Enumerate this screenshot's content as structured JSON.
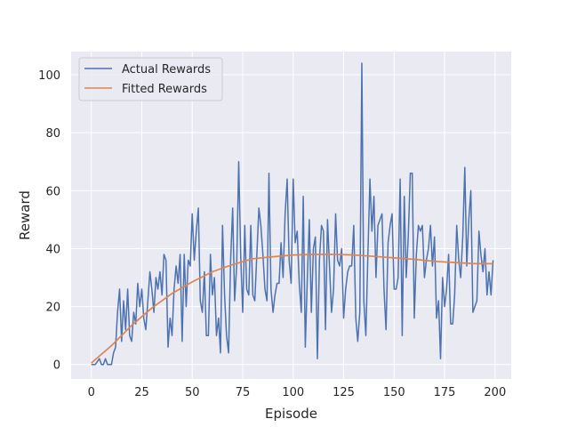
{
  "chart_data": {
    "type": "line",
    "title": "",
    "xlabel": "Episode",
    "ylabel": "Reward",
    "xlim": [
      -10,
      208
    ],
    "ylim": [
      -5,
      108
    ],
    "xticks": [
      0,
      25,
      50,
      75,
      100,
      125,
      150,
      175,
      200
    ],
    "yticks": [
      0,
      20,
      40,
      60,
      80,
      100
    ],
    "grid": true,
    "legend_position": "top-left",
    "series": [
      {
        "name": "Actual Rewards",
        "color": "#4c72b0",
        "points": [
          [
            0,
            0
          ],
          [
            2,
            0
          ],
          [
            4,
            2
          ],
          [
            5,
            0
          ],
          [
            6,
            0
          ],
          [
            7,
            2
          ],
          [
            8,
            0
          ],
          [
            10,
            0
          ],
          [
            11,
            4
          ],
          [
            12,
            6
          ],
          [
            13,
            18
          ],
          [
            14,
            26
          ],
          [
            15,
            8
          ],
          [
            16,
            22
          ],
          [
            17,
            12
          ],
          [
            18,
            26
          ],
          [
            19,
            10
          ],
          [
            20,
            8
          ],
          [
            21,
            18
          ],
          [
            22,
            14
          ],
          [
            23,
            28
          ],
          [
            24,
            20
          ],
          [
            25,
            26
          ],
          [
            26,
            16
          ],
          [
            27,
            12
          ],
          [
            28,
            22
          ],
          [
            29,
            32
          ],
          [
            30,
            26
          ],
          [
            31,
            18
          ],
          [
            32,
            30
          ],
          [
            33,
            26
          ],
          [
            34,
            32
          ],
          [
            35,
            24
          ],
          [
            36,
            38
          ],
          [
            37,
            36
          ],
          [
            38,
            6
          ],
          [
            39,
            16
          ],
          [
            40,
            10
          ],
          [
            41,
            26
          ],
          [
            42,
            34
          ],
          [
            43,
            28
          ],
          [
            44,
            38
          ],
          [
            45,
            8
          ],
          [
            46,
            38
          ],
          [
            47,
            20
          ],
          [
            48,
            36
          ],
          [
            49,
            34
          ],
          [
            50,
            52
          ],
          [
            51,
            36
          ],
          [
            52,
            46
          ],
          [
            53,
            54
          ],
          [
            54,
            22
          ],
          [
            55,
            18
          ],
          [
            56,
            32
          ],
          [
            57,
            10
          ],
          [
            58,
            10
          ],
          [
            59,
            38
          ],
          [
            60,
            24
          ],
          [
            61,
            30
          ],
          [
            62,
            10
          ],
          [
            63,
            16
          ],
          [
            64,
            4
          ],
          [
            65,
            48
          ],
          [
            66,
            24
          ],
          [
            67,
            10
          ],
          [
            68,
            4
          ],
          [
            69,
            36
          ],
          [
            70,
            54
          ],
          [
            71,
            22
          ],
          [
            72,
            34
          ],
          [
            73,
            70
          ],
          [
            74,
            38
          ],
          [
            75,
            18
          ],
          [
            76,
            48
          ],
          [
            77,
            26
          ],
          [
            78,
            24
          ],
          [
            79,
            48
          ],
          [
            80,
            24
          ],
          [
            81,
            22
          ],
          [
            82,
            38
          ],
          [
            83,
            54
          ],
          [
            84,
            48
          ],
          [
            85,
            38
          ],
          [
            86,
            26
          ],
          [
            87,
            22
          ],
          [
            88,
            66
          ],
          [
            89,
            26
          ],
          [
            90,
            18
          ],
          [
            91,
            24
          ],
          [
            92,
            28
          ],
          [
            93,
            28
          ],
          [
            94,
            42
          ],
          [
            95,
            30
          ],
          [
            96,
            52
          ],
          [
            97,
            64
          ],
          [
            98,
            36
          ],
          [
            99,
            28
          ],
          [
            100,
            64
          ],
          [
            101,
            42
          ],
          [
            102,
            46
          ],
          [
            103,
            28
          ],
          [
            104,
            18
          ],
          [
            105,
            58
          ],
          [
            106,
            6
          ],
          [
            107,
            30
          ],
          [
            108,
            50
          ],
          [
            109,
            18
          ],
          [
            110,
            40
          ],
          [
            111,
            44
          ],
          [
            112,
            2
          ],
          [
            113,
            36
          ],
          [
            114,
            48
          ],
          [
            115,
            46
          ],
          [
            116,
            12
          ],
          [
            117,
            50
          ],
          [
            118,
            34
          ],
          [
            119,
            18
          ],
          [
            120,
            26
          ],
          [
            121,
            52
          ],
          [
            122,
            36
          ],
          [
            123,
            34
          ],
          [
            124,
            40
          ],
          [
            125,
            16
          ],
          [
            126,
            26
          ],
          [
            127,
            32
          ],
          [
            128,
            34
          ],
          [
            129,
            34
          ],
          [
            130,
            48
          ],
          [
            131,
            16
          ],
          [
            132,
            8
          ],
          [
            133,
            18
          ],
          [
            134,
            104
          ],
          [
            135,
            22
          ],
          [
            136,
            10
          ],
          [
            137,
            38
          ],
          [
            138,
            64
          ],
          [
            139,
            46
          ],
          [
            140,
            58
          ],
          [
            141,
            30
          ],
          [
            142,
            48
          ],
          [
            143,
            50
          ],
          [
            144,
            52
          ],
          [
            145,
            26
          ],
          [
            146,
            12
          ],
          [
            147,
            42
          ],
          [
            148,
            48
          ],
          [
            149,
            52
          ],
          [
            150,
            26
          ],
          [
            151,
            26
          ],
          [
            152,
            30
          ],
          [
            153,
            64
          ],
          [
            154,
            10
          ],
          [
            155,
            58
          ],
          [
            156,
            30
          ],
          [
            157,
            44
          ],
          [
            158,
            66
          ],
          [
            159,
            66
          ],
          [
            160,
            16
          ],
          [
            161,
            38
          ],
          [
            162,
            48
          ],
          [
            163,
            46
          ],
          [
            164,
            48
          ],
          [
            165,
            30
          ],
          [
            166,
            36
          ],
          [
            167,
            40
          ],
          [
            168,
            48
          ],
          [
            169,
            34
          ],
          [
            170,
            44
          ],
          [
            171,
            16
          ],
          [
            172,
            22
          ],
          [
            173,
            2
          ],
          [
            174,
            30
          ],
          [
            175,
            20
          ],
          [
            176,
            26
          ],
          [
            177,
            38
          ],
          [
            178,
            14
          ],
          [
            179,
            14
          ],
          [
            180,
            24
          ],
          [
            181,
            48
          ],
          [
            182,
            36
          ],
          [
            183,
            30
          ],
          [
            184,
            44
          ],
          [
            185,
            68
          ],
          [
            186,
            34
          ],
          [
            187,
            50
          ],
          [
            188,
            60
          ],
          [
            189,
            18
          ],
          [
            190,
            20
          ],
          [
            191,
            22
          ],
          [
            192,
            46
          ],
          [
            193,
            38
          ],
          [
            194,
            32
          ],
          [
            195,
            40
          ],
          [
            196,
            24
          ],
          [
            197,
            32
          ],
          [
            198,
            24
          ],
          [
            199,
            36
          ]
        ]
      },
      {
        "name": "Fitted Rewards",
        "color": "#dd8452",
        "points": [
          [
            0,
            0.5
          ],
          [
            10,
            6.5
          ],
          [
            20,
            13.5
          ],
          [
            30,
            19.5
          ],
          [
            40,
            24.5
          ],
          [
            50,
            28.5
          ],
          [
            60,
            32
          ],
          [
            70,
            34.5
          ],
          [
            80,
            36.5
          ],
          [
            90,
            37.2
          ],
          [
            100,
            37.8
          ],
          [
            110,
            38
          ],
          [
            120,
            38
          ],
          [
            130,
            37.8
          ],
          [
            140,
            37.3
          ],
          [
            150,
            36.8
          ],
          [
            160,
            36.3
          ],
          [
            170,
            35.6
          ],
          [
            180,
            35.2
          ],
          [
            190,
            34.8
          ],
          [
            199,
            34.8
          ]
        ]
      }
    ]
  }
}
